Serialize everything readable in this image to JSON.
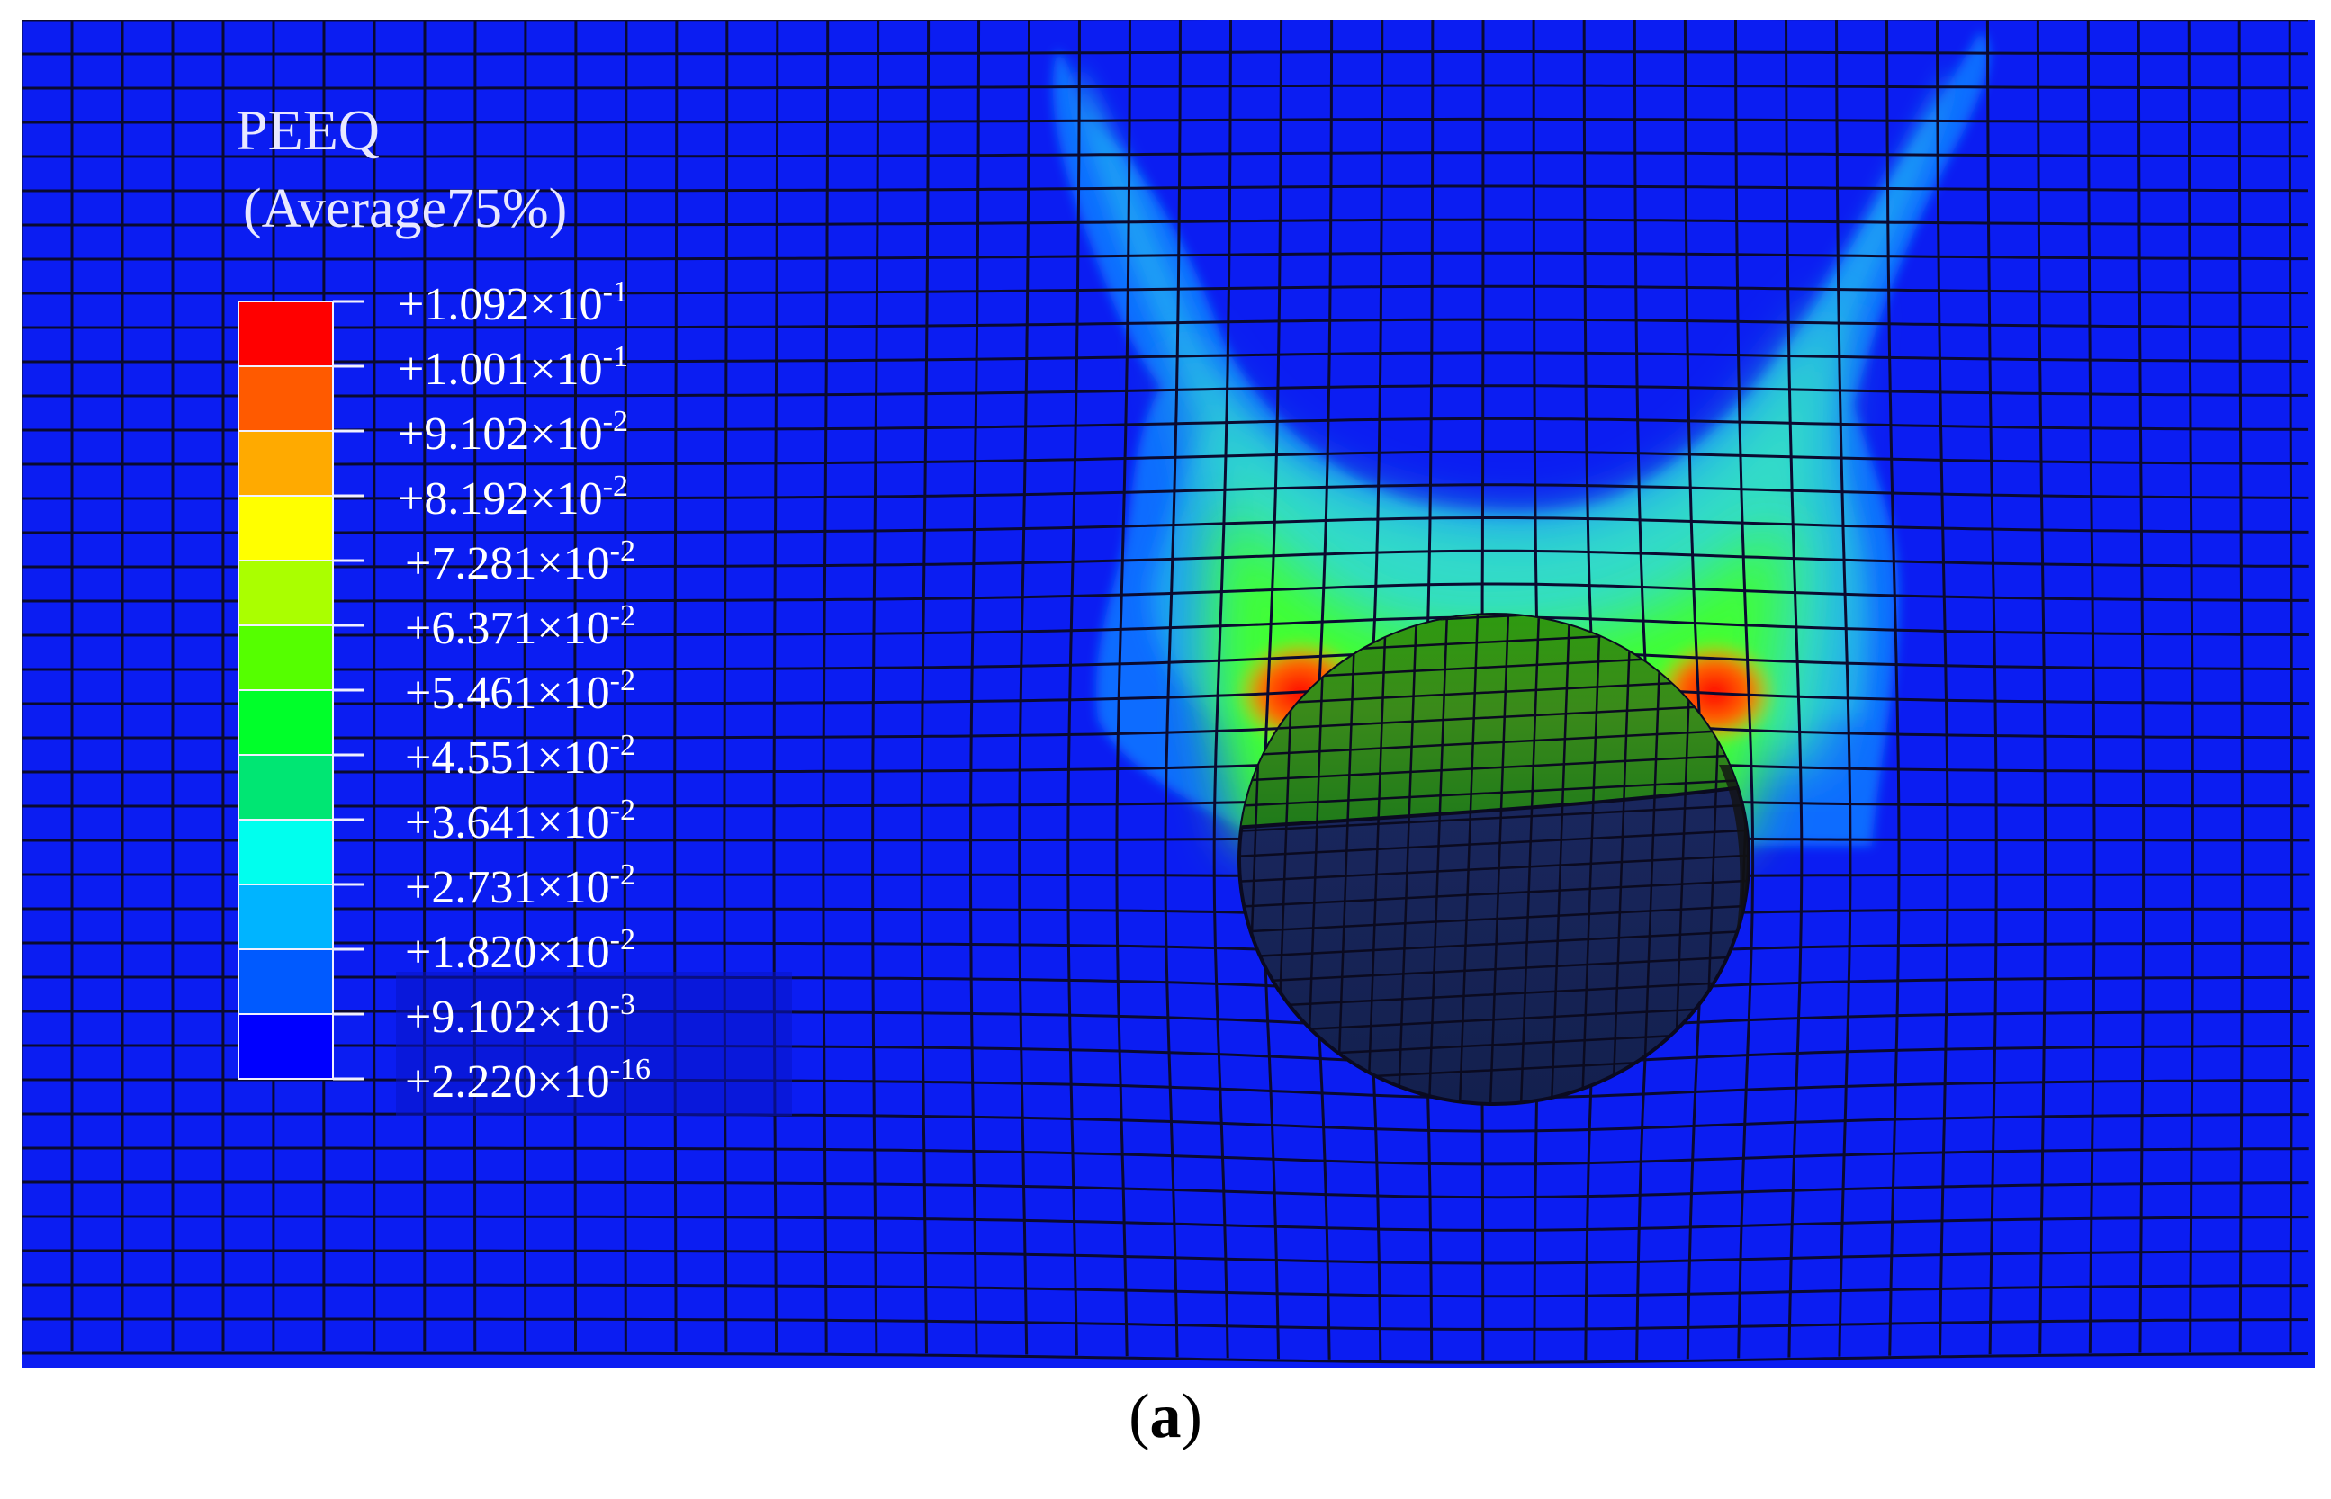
{
  "legend": {
    "title": "PEEQ",
    "subtitle": "(Average75%)",
    "bands": [
      "#ff0000",
      "#ff5a00",
      "#ffaa00",
      "#ffff00",
      "#aaff00",
      "#55ff00",
      "#00ff2a",
      "#00e673",
      "#00ffee",
      "#00b4ff",
      "#005aff",
      "#0000ff"
    ],
    "ticks": [
      {
        "mantissa": "+1.092×10",
        "exp": "-1"
      },
      {
        "mantissa": "+1.001×10",
        "exp": "-1"
      },
      {
        "mantissa": "+9.102×10",
        "exp": "-2"
      },
      {
        "mantissa": "+8.192×10",
        "exp": "-2"
      },
      {
        "mantissa": "+7.281×10",
        "exp": "-2"
      },
      {
        "mantissa": "+6.371×10",
        "exp": "-2"
      },
      {
        "mantissa": "+5.461×10",
        "exp": "-2"
      },
      {
        "mantissa": "+4.551×10",
        "exp": "-2"
      },
      {
        "mantissa": "+3.641×10",
        "exp": "-2"
      },
      {
        "mantissa": "+2.731×10",
        "exp": "-2"
      },
      {
        "mantissa": "+1.820×10",
        "exp": "-2"
      },
      {
        "mantissa": "+9.102×10",
        "exp": "-3"
      },
      {
        "mantissa": "+2.220×10",
        "exp": "-16"
      }
    ]
  },
  "caption": {
    "open": "(",
    "letter": "a",
    "close": ")"
  }
}
